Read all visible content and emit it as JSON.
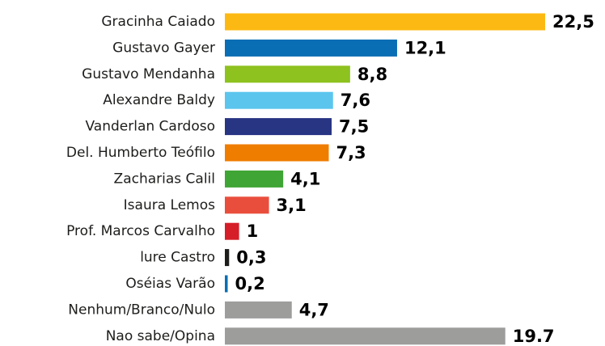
{
  "chart_data": {
    "type": "bar",
    "orientation": "horizontal",
    "categories": [
      "Gracinha Caiado",
      "Gustavo Gayer",
      "Gustavo Mendanha",
      "Alexandre Baldy",
      "Vanderlan Cardoso",
      "Del. Humberto Teófilo",
      "Zacharias Calil",
      "Isaura Lemos",
      "Prof. Marcos Carvalho",
      "lure Castro",
      "Oséias Varão",
      "Nenhum/Branco/Nulo",
      "Nao sabe/Opina"
    ],
    "values": [
      22.5,
      12.1,
      8.8,
      7.6,
      7.5,
      7.3,
      4.1,
      3.1,
      1,
      0.3,
      0.2,
      4.7,
      19.7
    ],
    "value_labels": [
      "22,5",
      "12,1",
      "8,8",
      "7,6",
      "7,5",
      "7,3",
      "4,1",
      "3,1",
      "1",
      "0,3",
      "0,2",
      "4,7",
      "19.7"
    ],
    "colors": [
      "#fdb913",
      "#0a6eb4",
      "#8dc21f",
      "#5bc5ee",
      "#283583",
      "#ef7d00",
      "#3fa535",
      "#e94e3c",
      "#d51e28",
      "#1d1d1b",
      "#0a6eb4",
      "#9d9d9c",
      "#9d9d9c"
    ]
  }
}
